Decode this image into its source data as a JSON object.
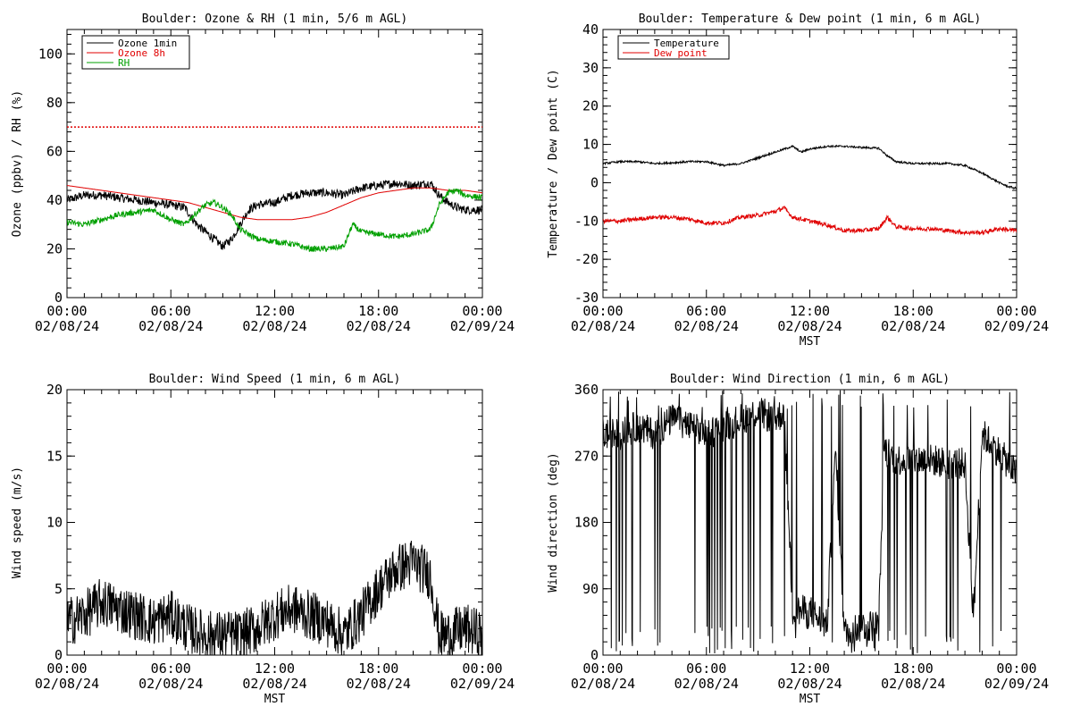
{
  "chart_data": [
    {
      "type": "line",
      "title": "Boulder: Ozone & RH (1 min, 5/6 m AGL)",
      "xlabel": "",
      "ylabel": "Ozone (ppbv) / RH (%)",
      "xlim": [
        0,
        24
      ],
      "ylim": [
        0,
        110
      ],
      "yticks": [
        0,
        20,
        40,
        60,
        80,
        100
      ],
      "xtick_labels": [
        [
          "00:00",
          "02/08/24"
        ],
        [
          "06:00",
          "02/08/24"
        ],
        [
          "12:00",
          "02/08/24"
        ],
        [
          "18:00",
          "02/08/24"
        ],
        [
          "00:00",
          "02/09/24"
        ]
      ],
      "legend_position": "top-left",
      "reference_line": {
        "y": 70,
        "color": "#e00000",
        "style": "dotted"
      },
      "series": [
        {
          "name": "Ozone 1min",
          "color": "#000000",
          "noise": 1.8,
          "x": [
            0,
            1,
            2,
            3,
            4,
            5,
            6,
            6.8,
            7.5,
            8,
            8.5,
            9,
            9.5,
            10,
            10.5,
            11,
            12,
            13,
            14,
            15,
            16,
            17,
            18,
            19,
            20,
            21,
            21.5,
            22,
            22.5,
            23,
            24
          ],
          "y": [
            40,
            42,
            42,
            41,
            40,
            39,
            38,
            37,
            30,
            27,
            24,
            21,
            24,
            30,
            36,
            38,
            39,
            42,
            43,
            43,
            42,
            45,
            46,
            47,
            46,
            47,
            42,
            39,
            37,
            36,
            36
          ]
        },
        {
          "name": "Ozone 8h",
          "color": "#e00000",
          "noise": 0,
          "x": [
            0,
            2,
            4,
            6,
            7,
            8,
            9,
            10,
            11,
            12,
            13,
            14,
            15,
            16,
            17,
            18,
            19,
            20,
            21,
            22,
            23,
            24
          ],
          "y": [
            46,
            44,
            42,
            40,
            39,
            37,
            35,
            33,
            32,
            32,
            32,
            33,
            35,
            38,
            41,
            43,
            44,
            45,
            45,
            44,
            44,
            43
          ]
        },
        {
          "name": "RH",
          "color": "#00a000",
          "noise": 1.2,
          "x": [
            0,
            1,
            2,
            3,
            4,
            5,
            6,
            6.8,
            7.5,
            8,
            8.5,
            9,
            9.5,
            10,
            10.5,
            11,
            12,
            13,
            14,
            15,
            16,
            16.5,
            17,
            18,
            19,
            20,
            21,
            21.5,
            22,
            22.5,
            23,
            24
          ],
          "y": [
            31,
            30,
            32,
            34,
            35,
            36,
            32,
            30,
            35,
            38,
            39,
            37,
            34,
            28,
            26,
            24,
            23,
            22,
            20,
            20,
            21,
            30,
            27,
            26,
            25,
            26,
            28,
            38,
            43,
            44,
            42,
            41
          ]
        }
      ]
    },
    {
      "type": "line",
      "title": "Boulder: Temperature & Dew point (1 min, 6 m AGL)",
      "xlabel": "MST",
      "ylabel": "Temperature / Dew point (C)",
      "xlim": [
        0,
        24
      ],
      "ylim": [
        -30,
        40
      ],
      "yticks": [
        -30,
        -20,
        -10,
        0,
        10,
        20,
        30,
        40
      ],
      "xtick_labels": [
        [
          "00:00",
          "02/08/24"
        ],
        [
          "06:00",
          "02/08/24"
        ],
        [
          "12:00",
          "02/08/24"
        ],
        [
          "18:00",
          "02/08/24"
        ],
        [
          "00:00",
          "02/09/24"
        ]
      ],
      "legend_position": "top-left",
      "series": [
        {
          "name": "Temperature",
          "color": "#000000",
          "noise": 0.25,
          "x": [
            0,
            1,
            2,
            3,
            4,
            5,
            6,
            7,
            8,
            9,
            10,
            11,
            11.5,
            12,
            13,
            14,
            15,
            16,
            16.5,
            17,
            18,
            19,
            20,
            21,
            22,
            23,
            23.5,
            24
          ],
          "y": [
            5,
            5.5,
            5.5,
            5,
            5.2,
            5.5,
            5.5,
            4.5,
            5,
            6.5,
            8,
            9.5,
            8,
            8.8,
            9.5,
            9.5,
            9.2,
            9,
            7,
            5.5,
            5,
            5,
            5,
            4.5,
            2.5,
            0,
            -1,
            -1.5
          ]
        },
        {
          "name": "Dew point",
          "color": "#e00000",
          "noise": 0.55,
          "x": [
            0,
            1,
            2,
            3,
            4,
            5,
            6,
            7,
            8,
            9,
            10,
            10.5,
            11,
            12,
            13,
            14,
            15,
            16,
            16.5,
            17,
            18,
            19,
            20,
            21,
            22,
            23,
            24
          ],
          "y": [
            -10,
            -10,
            -9.5,
            -9,
            -9,
            -9.5,
            -10.5,
            -10.5,
            -9,
            -8.5,
            -7.5,
            -6.5,
            -9,
            -10,
            -11,
            -12.5,
            -12.5,
            -12,
            -9,
            -11.5,
            -12,
            -12,
            -12.5,
            -13,
            -13,
            -12,
            -12.5
          ]
        }
      ]
    },
    {
      "type": "line",
      "title": "Boulder: Wind Speed (1 min, 6 m AGL)",
      "xlabel": "MST",
      "ylabel": "Wind speed (m/s)",
      "xlim": [
        0,
        24
      ],
      "ylim": [
        0,
        20
      ],
      "yticks": [
        0,
        5,
        10,
        15,
        20
      ],
      "xtick_labels": [
        [
          "00:00",
          "02/08/24"
        ],
        [
          "06:00",
          "02/08/24"
        ],
        [
          "12:00",
          "02/08/24"
        ],
        [
          "18:00",
          "02/08/24"
        ],
        [
          "00:00",
          "02/09/24"
        ]
      ],
      "series": [
        {
          "name": "",
          "color": "#000000",
          "noise": 1.9,
          "x": [
            0,
            1,
            2,
            3,
            4,
            5,
            6,
            7,
            8,
            9,
            10,
            11,
            12,
            13,
            14,
            15,
            16,
            17,
            18,
            19,
            20,
            21,
            21.5,
            22,
            23,
            24
          ],
          "y": [
            2.5,
            3,
            4,
            3.5,
            3,
            2.5,
            3,
            2,
            1.5,
            1.5,
            1.5,
            2,
            3,
            3.5,
            3,
            2.5,
            1.5,
            3,
            5,
            6.5,
            7,
            6,
            1.5,
            1.5,
            2,
            1.5
          ]
        }
      ]
    },
    {
      "type": "line",
      "title": "Boulder: Wind Direction (1 min, 6 m AGL)",
      "xlabel": "MST",
      "ylabel": "Wind direction (deg)",
      "xlim": [
        0,
        24
      ],
      "ylim": [
        0,
        360
      ],
      "yticks": [
        0,
        90,
        180,
        270,
        360
      ],
      "xtick_labels": [
        [
          "00:00",
          "02/08/24"
        ],
        [
          "06:00",
          "02/08/24"
        ],
        [
          "12:00",
          "02/08/24"
        ],
        [
          "18:00",
          "02/08/24"
        ],
        [
          "00:00",
          "02/09/24"
        ]
      ],
      "series": [
        {
          "name": "",
          "color": "#000000",
          "noise": 22,
          "spikes": true,
          "x": [
            0,
            1,
            2,
            3,
            4,
            5,
            6,
            7,
            8,
            9,
            10,
            10.5,
            11,
            12,
            13,
            13.5,
            14,
            15,
            16,
            16.3,
            17,
            18,
            19,
            20,
            21,
            21.5,
            22,
            23,
            24
          ],
          "y": [
            300,
            300,
            310,
            300,
            320,
            310,
            300,
            310,
            320,
            330,
            320,
            330,
            60,
            60,
            40,
            280,
            30,
            40,
            40,
            280,
            265,
            265,
            265,
            260,
            260,
            50,
            300,
            275,
            245
          ]
        }
      ]
    }
  ]
}
